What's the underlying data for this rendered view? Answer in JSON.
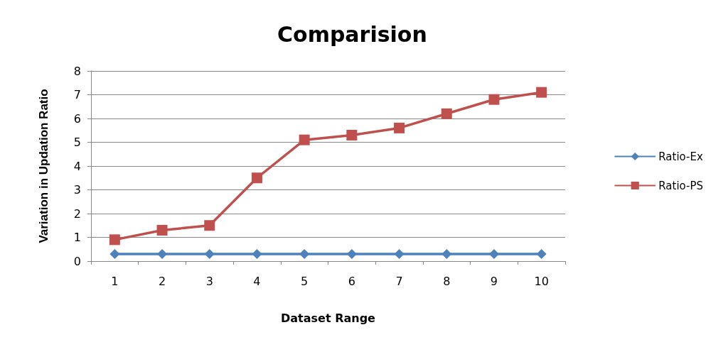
{
  "chart_data": {
    "type": "line",
    "title": "Comparision",
    "xlabel": "Dataset Range",
    "ylabel": "Variation in Updation Ratio",
    "categories": [
      "1",
      "2",
      "3",
      "4",
      "5",
      "6",
      "7",
      "8",
      "9",
      "10"
    ],
    "series": [
      {
        "name": "Ratio-Ex",
        "color": "#4f81bd",
        "marker": "diamond",
        "values": [
          0.3,
          0.3,
          0.3,
          0.3,
          0.3,
          0.3,
          0.3,
          0.3,
          0.3,
          0.3
        ]
      },
      {
        "name": "Ratio-PS",
        "color": "#c0504d",
        "marker": "square",
        "values": [
          0.9,
          1.3,
          1.5,
          3.5,
          5.1,
          5.3,
          5.6,
          6.2,
          6.8,
          7.1
        ]
      }
    ],
    "ylim": [
      0,
      8
    ],
    "yticks": [
      0,
      1,
      2,
      3,
      4,
      5,
      6,
      7,
      8
    ],
    "grid": "y",
    "legend": "right"
  }
}
